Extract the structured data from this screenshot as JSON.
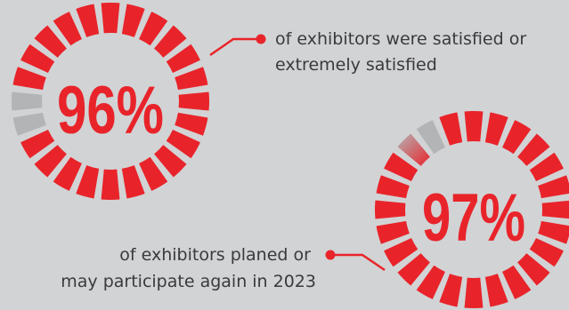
{
  "chart_data": [
    {
      "type": "donut",
      "value_percent": 96,
      "label": "96%",
      "caption_lines": [
        "of exhibitors were satisfied or",
        "extremely satisfied"
      ],
      "colors": {
        "filled": "#e8242a",
        "empty": "#b3b4b6",
        "text": "#e8242a"
      }
    },
    {
      "type": "donut",
      "value_percent": 97,
      "label": "97%",
      "caption_lines": [
        "of exhibitors planed or",
        "may participate again in 2023"
      ],
      "colors": {
        "filled": "#e8242a",
        "empty": "#b3b4b6",
        "text": "#e8242a"
      }
    }
  ],
  "colors": {
    "background": "#d2d3d5",
    "accent": "#e8242a",
    "caption_text": "#3a3a3c"
  }
}
